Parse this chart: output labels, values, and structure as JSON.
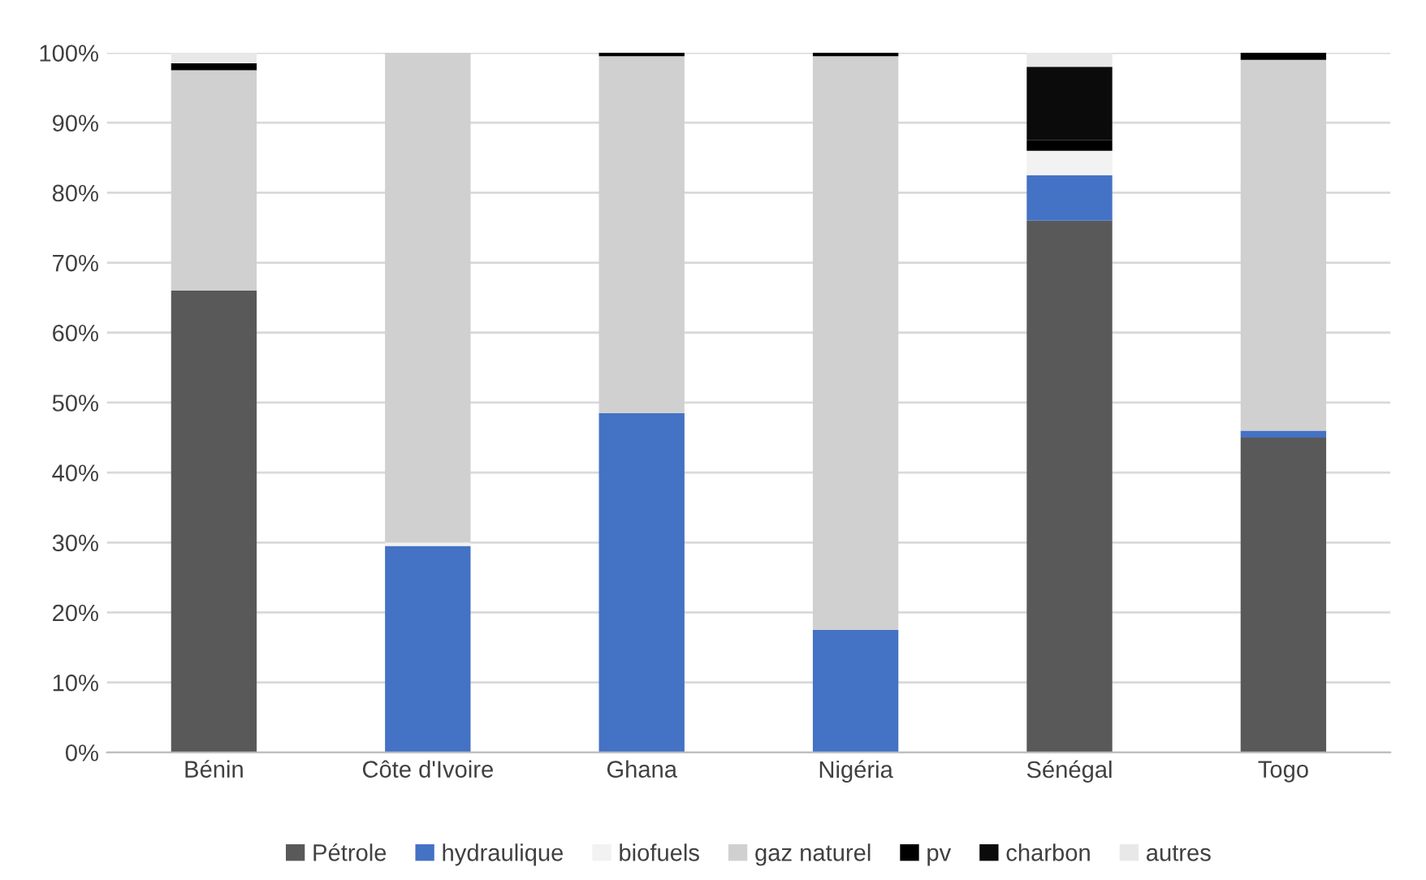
{
  "chart_data": {
    "type": "bar",
    "stacked": true,
    "categories": [
      "Bénin",
      "Côte d'Ivoire",
      "Ghana",
      "Nigéria",
      "Sénégal",
      "Togo"
    ],
    "series": [
      {
        "name": "Pétrole",
        "color": "#595959",
        "values": [
          66,
          0,
          0,
          0,
          76,
          45
        ]
      },
      {
        "name": "hydraulique",
        "color": "#4472c4",
        "values": [
          0,
          29.5,
          48.5,
          17.5,
          6.5,
          1
        ]
      },
      {
        "name": "biofuels",
        "color": "#f2f2f2",
        "values": [
          0,
          0.5,
          0,
          0,
          3.5,
          0
        ]
      },
      {
        "name": "gaz naturel",
        "color": "#d0d0d0",
        "values": [
          31.5,
          70,
          51,
          82,
          0,
          53
        ]
      },
      {
        "name": "pv",
        "color": "#000000",
        "values": [
          1,
          0,
          0.5,
          0.5,
          1.5,
          1
        ]
      },
      {
        "name": "charbon",
        "color": "#0b0b0b",
        "values": [
          0,
          0,
          0,
          0,
          10.5,
          0
        ]
      },
      {
        "name": "autres",
        "color": "#e8e8e8",
        "values": [
          1.5,
          0,
          0,
          0,
          2,
          0
        ]
      }
    ],
    "ylim": [
      0,
      100
    ],
    "yticks": [
      {
        "value": 0,
        "label": "0%"
      },
      {
        "value": 10,
        "label": "10%"
      },
      {
        "value": 20,
        "label": "20%"
      },
      {
        "value": 30,
        "label": "30%"
      },
      {
        "value": 40,
        "label": "40%"
      },
      {
        "value": 50,
        "label": "50%"
      },
      {
        "value": 60,
        "label": "60%"
      },
      {
        "value": 70,
        "label": "70%"
      },
      {
        "value": 80,
        "label": "80%"
      },
      {
        "value": 90,
        "label": "90%"
      },
      {
        "value": 100,
        "label": "100%"
      }
    ],
    "grid": "y",
    "legend": "bottom"
  }
}
